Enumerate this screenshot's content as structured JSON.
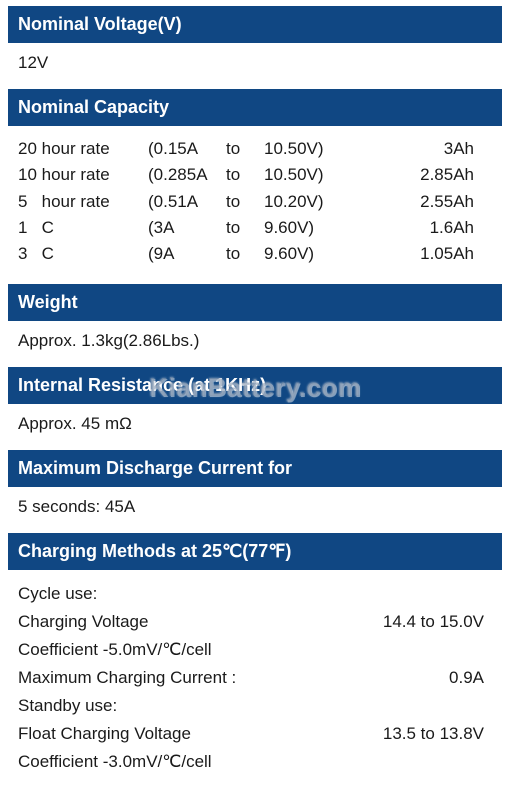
{
  "colors": {
    "header_bg": "#104783",
    "header_text": "#ffffff",
    "body_text": "#1a1a1a",
    "page_bg": "#ffffff",
    "watermark": "rgba(120,140,165,0.55)"
  },
  "typography": {
    "header_fontsize": 18,
    "body_fontsize": 17,
    "font_family": "Arial"
  },
  "watermark_text": "KianBattery.com",
  "sections": {
    "nominal_voltage": {
      "title": "Nominal Voltage(V)",
      "value": "12V"
    },
    "nominal_capacity": {
      "title": "Nominal Capacity",
      "rows": [
        {
          "rate": "20 hour rate",
          "current": "(0.15A",
          "to": "to",
          "volt": "10.50V)",
          "cap": "3Ah"
        },
        {
          "rate": "10 hour rate",
          "current": "(0.285A",
          "to": "to",
          "volt": "10.50V)",
          "cap": "2.85Ah"
        },
        {
          "rate": "5   hour rate",
          "current": "(0.51A",
          "to": "to",
          "volt": "10.20V)",
          "cap": "2.55Ah"
        },
        {
          "rate": "1   C",
          "current": "(3A",
          "to": "to",
          "volt": "9.60V)",
          "cap": "1.6Ah"
        },
        {
          "rate": "3   C",
          "current": "(9A",
          "to": "to",
          "volt": "9.60V)",
          "cap": "1.05Ah"
        }
      ]
    },
    "weight": {
      "title": "Weight",
      "value": "Approx. 1.3kg(2.86Lbs.)"
    },
    "internal_resistance": {
      "title": "Internal Resistance (at 1KHz)",
      "value": "Approx. 45 mΩ"
    },
    "max_discharge": {
      "title": "Maximum Discharge Current for",
      "value": "5 seconds: 45A"
    },
    "charging_methods": {
      "title": "Charging Methods at 25℃(77℉)",
      "cycle_label": "Cycle use:",
      "cycle_rows": [
        {
          "label": "Charging Voltage",
          "value": "14.4 to 15.0V"
        },
        {
          "label": "Coefficient -5.0mV/℃/cell",
          "value": ""
        },
        {
          "label": "Maximum Charging Current :",
          "value": "0.9A"
        }
      ],
      "standby_label": "Standby use:",
      "standby_rows": [
        {
          "label": "Float Charging Voltage",
          "value": "13.5 to 13.8V"
        },
        {
          "label": "Coefficient -3.0mV/℃/cell",
          "value": ""
        }
      ]
    }
  }
}
